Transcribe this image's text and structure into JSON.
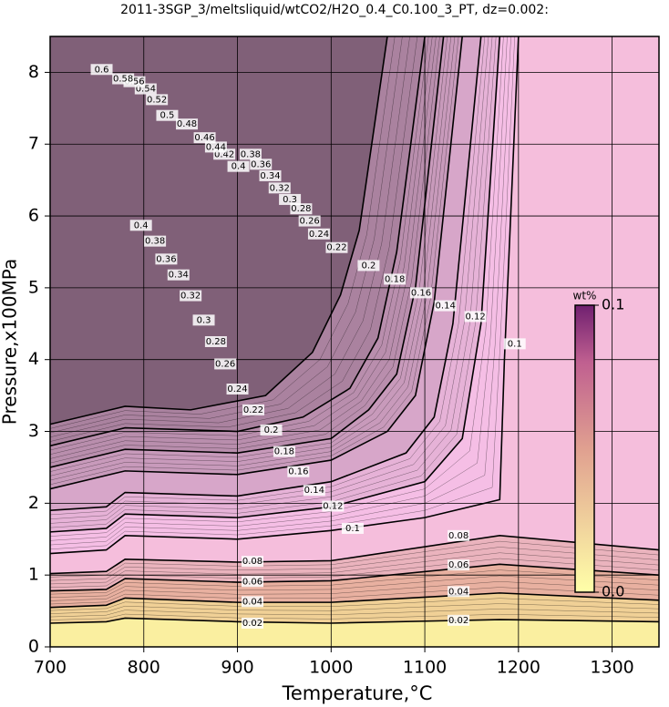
{
  "chart_data": {
    "type": "contour",
    "title": "2011-3SGP_3/meltsliquid/wtCO2/H2O_0.4_C0.100_3_PT, dz=0.002:",
    "x_label": "Temperature,°C",
    "y_label": "Pressure,x100MPa",
    "xlim": [
      700,
      1350
    ],
    "ylim": [
      0,
      8.5
    ],
    "xticks": [
      700,
      800,
      900,
      1000,
      1100,
      1200,
      1300
    ],
    "yticks": [
      0,
      1,
      2,
      3,
      4,
      5,
      6,
      7,
      8
    ],
    "grid": true,
    "colormap": [
      "#ffffa8",
      "#f2d894",
      "#e8b0a0",
      "#eab4c4",
      "#fcc4ec"
    ],
    "high_color": "#806078",
    "colorbar": {
      "label": "wt%",
      "lim": [
        0,
        0.1
      ],
      "ticks": [
        {
          "value": 0,
          "label": "0.0"
        },
        0.1
      ]
    },
    "contours": [
      {
        "level": 0.22,
        "x": [
          700,
          780,
          850,
          930,
          980,
          1010,
          1030,
          1060
        ],
        "y": [
          3.1,
          3.35,
          3.3,
          3.5,
          4.1,
          4.9,
          5.8,
          8.5
        ]
      },
      {
        "level": 0.2,
        "x": [
          700,
          780,
          900,
          970,
          1020,
          1050,
          1070,
          1100
        ],
        "y": [
          2.8,
          3.05,
          3.0,
          3.2,
          3.6,
          4.3,
          5.5,
          8.5
        ]
      },
      {
        "level": 0.18,
        "x": [
          700,
          780,
          900,
          1000,
          1040,
          1070,
          1090,
          1120
        ],
        "y": [
          2.5,
          2.75,
          2.7,
          2.9,
          3.3,
          3.8,
          5.0,
          8.5
        ]
      },
      {
        "level": 0.16,
        "x": [
          700,
          780,
          900,
          1000,
          1060,
          1090,
          1110,
          1140
        ],
        "y": [
          2.2,
          2.45,
          2.4,
          2.6,
          3.0,
          3.5,
          4.8,
          8.5
        ]
      },
      {
        "level": 0.14,
        "x": [
          700,
          760,
          780,
          900,
          1000,
          1080,
          1110,
          1130,
          1160
        ],
        "y": [
          1.9,
          1.95,
          2.15,
          2.1,
          2.3,
          2.7,
          3.2,
          4.5,
          8.5
        ]
      },
      {
        "level": 0.12,
        "x": [
          700,
          760,
          780,
          900,
          1000,
          1100,
          1140,
          1160,
          1180
        ],
        "y": [
          1.6,
          1.65,
          1.85,
          1.8,
          1.95,
          2.3,
          2.9,
          4.5,
          8.5
        ]
      },
      {
        "level": 0.1,
        "x": [
          700,
          760,
          780,
          900,
          1000,
          1100,
          1180,
          1185,
          1200
        ],
        "y": [
          1.3,
          1.35,
          1.55,
          1.5,
          1.62,
          1.8,
          2.05,
          4,
          8.5
        ]
      },
      {
        "level": 0.08,
        "x": [
          700,
          760,
          780,
          900,
          1000,
          1180,
          1350
        ],
        "y": [
          1.02,
          1.05,
          1.22,
          1.18,
          1.2,
          1.55,
          1.35
        ]
      },
      {
        "level": 0.06,
        "x": [
          700,
          760,
          780,
          900,
          1000,
          1180,
          1350
        ],
        "y": [
          0.78,
          0.8,
          0.95,
          0.9,
          0.92,
          1.15,
          1.0
        ]
      },
      {
        "level": 0.04,
        "x": [
          700,
          760,
          780,
          900,
          1000,
          1180,
          1350
        ],
        "y": [
          0.55,
          0.58,
          0.68,
          0.62,
          0.62,
          0.75,
          0.65
        ]
      },
      {
        "level": 0.02,
        "x": [
          700,
          760,
          780,
          900,
          1000,
          1180,
          1350
        ],
        "y": [
          0.33,
          0.35,
          0.4,
          0.35,
          0.33,
          0.38,
          0.35
        ]
      }
    ],
    "contour_labels": [
      {
        "value": 0.02,
        "x": 916,
        "y": 0.33
      },
      {
        "value": 0.02,
        "x": 1136,
        "y": 0.37
      },
      {
        "value": 0.04,
        "x": 916,
        "y": 0.63
      },
      {
        "value": 0.04,
        "x": 1136,
        "y": 0.77
      },
      {
        "value": 0.06,
        "x": 916,
        "y": 0.91
      },
      {
        "value": 0.06,
        "x": 1136,
        "y": 1.14
      },
      {
        "value": 0.08,
        "x": 916,
        "y": 1.19
      },
      {
        "value": 0.08,
        "x": 1136,
        "y": 1.55
      },
      {
        "value": 0.1,
        "x": 1023,
        "y": 1.65
      },
      {
        "value": 0.1,
        "x": 1196,
        "y": 4.22
      },
      {
        "value": 0.12,
        "x": 1002,
        "y": 1.96
      },
      {
        "value": 0.12,
        "x": 1154,
        "y": 4.6
      },
      {
        "value": 0.14,
        "x": 982,
        "y": 2.18
      },
      {
        "value": 0.14,
        "x": 1122,
        "y": 4.75
      },
      {
        "value": 0.16,
        "x": 965,
        "y": 2.44
      },
      {
        "value": 0.16,
        "x": 1096,
        "y": 4.93
      },
      {
        "value": 0.18,
        "x": 950,
        "y": 2.72
      },
      {
        "value": 0.18,
        "x": 1068,
        "y": 5.12
      },
      {
        "value": 0.2,
        "x": 936,
        "y": 3.02
      },
      {
        "value": 0.2,
        "x": 1040,
        "y": 5.31
      },
      {
        "value": 0.22,
        "x": 917,
        "y": 3.3
      },
      {
        "value": 0.22,
        "x": 1006,
        "y": 5.56
      },
      {
        "value": 0.24,
        "x": 900,
        "y": 3.59
      },
      {
        "value": 0.24,
        "x": 987,
        "y": 5.75
      },
      {
        "value": 0.26,
        "x": 887,
        "y": 3.94
      },
      {
        "value": 0.26,
        "x": 977,
        "y": 5.93
      },
      {
        "value": 0.28,
        "x": 877,
        "y": 4.25
      },
      {
        "value": 0.28,
        "x": 968,
        "y": 6.1
      },
      {
        "value": 0.3,
        "x": 864,
        "y": 4.55
      },
      {
        "value": 0.3,
        "x": 956,
        "y": 6.23
      },
      {
        "value": 0.32,
        "x": 850,
        "y": 4.89
      },
      {
        "value": 0.32,
        "x": 945,
        "y": 6.39
      },
      {
        "value": 0.34,
        "x": 837,
        "y": 5.18
      },
      {
        "value": 0.34,
        "x": 935,
        "y": 6.56
      },
      {
        "value": 0.36,
        "x": 824,
        "y": 5.4
      },
      {
        "value": 0.36,
        "x": 925,
        "y": 6.72
      },
      {
        "value": 0.38,
        "x": 812,
        "y": 5.65
      },
      {
        "value": 0.38,
        "x": 914,
        "y": 6.86
      },
      {
        "value": 0.4,
        "x": 797,
        "y": 5.87
      },
      {
        "value": 0.4,
        "x": 901,
        "y": 6.69
      },
      {
        "value": 0.42,
        "x": 886,
        "y": 6.86
      },
      {
        "value": 0.44,
        "x": 877,
        "y": 6.96
      },
      {
        "value": 0.46,
        "x": 865,
        "y": 7.09
      },
      {
        "value": 0.48,
        "x": 846,
        "y": 7.28
      },
      {
        "value": 0.5,
        "x": 825,
        "y": 7.4
      },
      {
        "value": 0.52,
        "x": 814,
        "y": 7.62
      },
      {
        "value": 0.54,
        "x": 802,
        "y": 7.77
      },
      {
        "value": 0.56,
        "x": 790,
        "y": 7.87
      },
      {
        "value": 0.58,
        "x": 778,
        "y": 7.91
      },
      {
        "value": 0.6,
        "x": 755,
        "y": 8.04
      }
    ]
  }
}
